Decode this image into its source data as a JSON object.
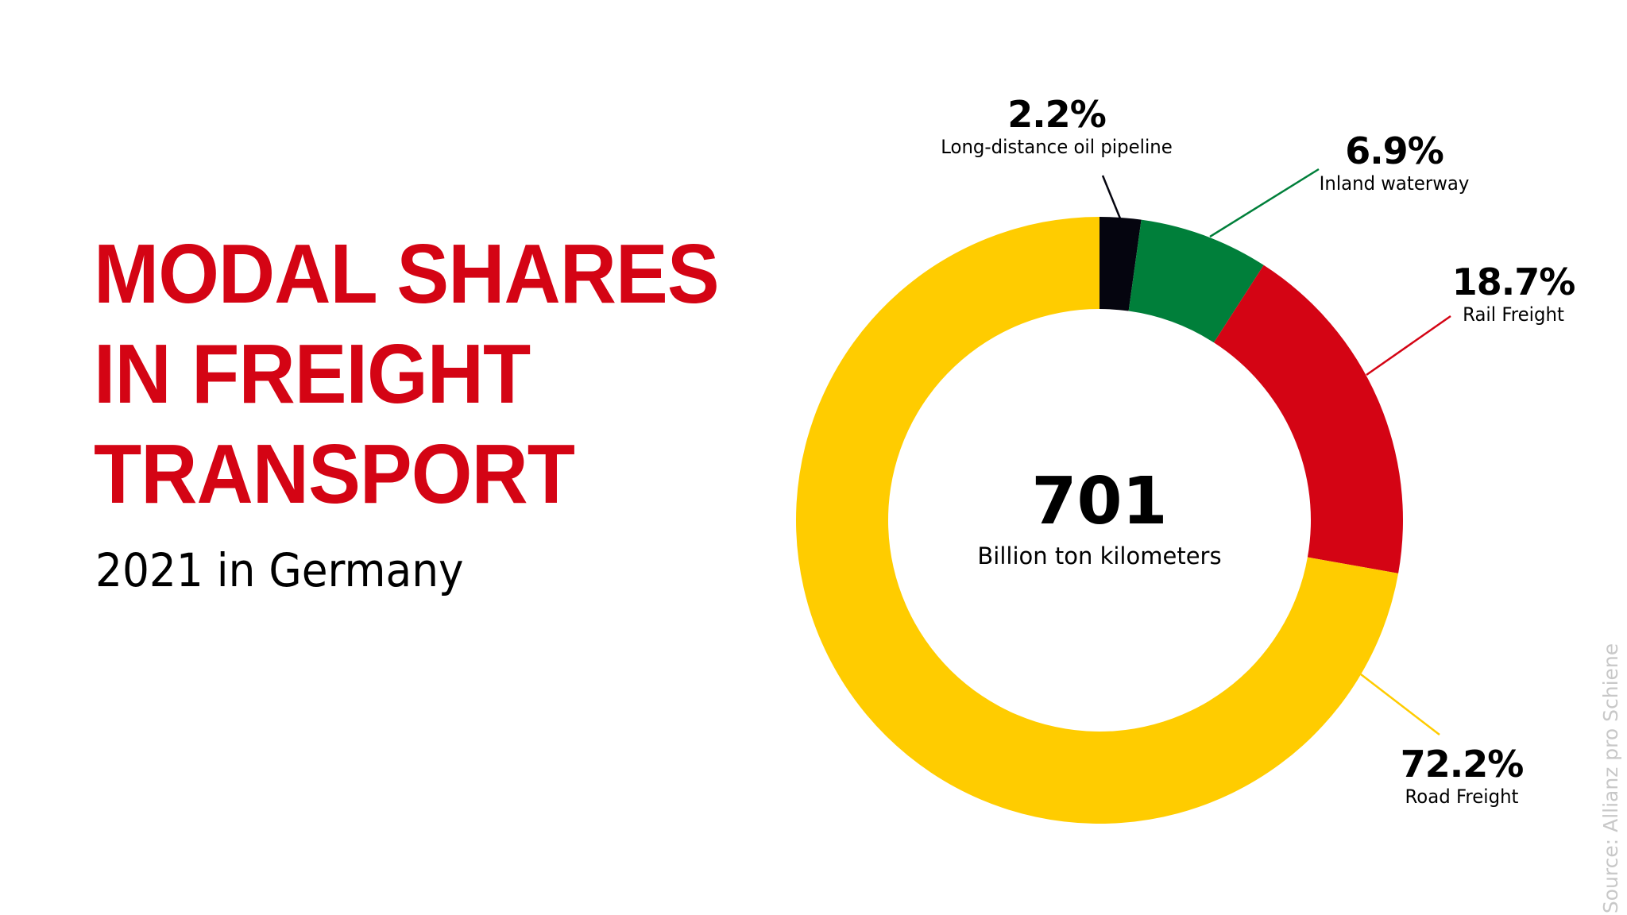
{
  "header": {
    "title_lines": [
      "MODAL SHARES",
      "IN FREIGHT",
      "TRANSPORT"
    ],
    "subtitle": "2021 in Germany"
  },
  "center": {
    "value": "701",
    "unit": "Billion ton kilometers"
  },
  "labels": [
    {
      "pct": "2.2%",
      "name": "Long-distance oil pipeline"
    },
    {
      "pct": "6.9%",
      "name": "Inland waterway"
    },
    {
      "pct": "18.7%",
      "name": "Rail Freight"
    },
    {
      "pct": "72.2%",
      "name": "Road Freight"
    }
  ],
  "source": "Source: Allianz pro Schiene",
  "colors": {
    "title": "#D40414",
    "pipeline": "#05050F",
    "waterway": "#007F3A",
    "rail": "#D40414",
    "road": "#FFCC00",
    "source_text": "#C8C8C8"
  },
  "chart_data": {
    "type": "pie",
    "variant": "donut",
    "title": "MODAL SHARES IN FREIGHT TRANSPORT",
    "subtitle": "2021 in Germany",
    "center_label": {
      "value": 701,
      "unit": "Billion ton kilometers"
    },
    "categories": [
      "Long-distance oil pipeline",
      "Inland waterway",
      "Rail Freight",
      "Road Freight"
    ],
    "values": [
      2.2,
      6.9,
      18.7,
      72.2
    ],
    "unit": "%",
    "colors": [
      "#05050F",
      "#007F3A",
      "#D40414",
      "#FFCC00"
    ],
    "start_angle_deg": 0,
    "direction": "clockwise",
    "legend": "none (direct labels with leader lines)",
    "source": "Source: Allianz pro Schiene"
  }
}
